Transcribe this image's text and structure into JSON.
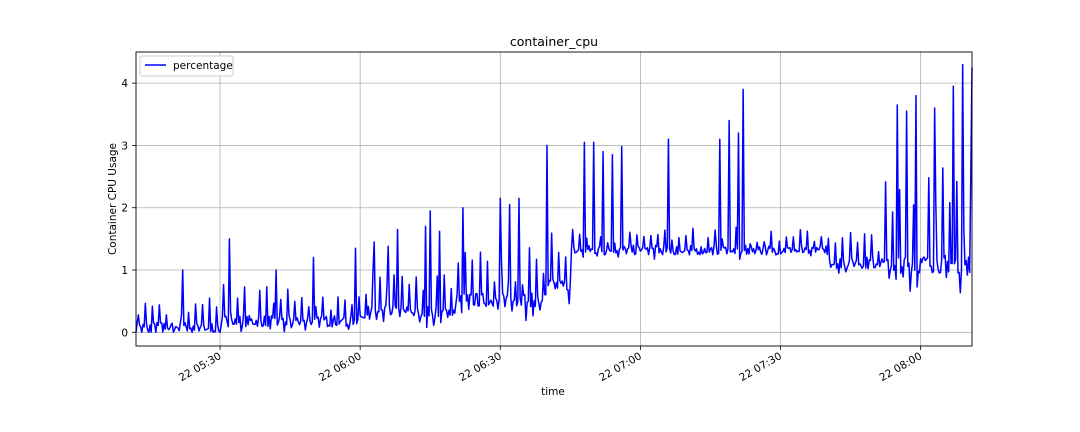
{
  "chart_data": {
    "type": "line",
    "title": "container_cpu",
    "xlabel": "time",
    "ylabel": "Container CPU Usage",
    "xlim": [
      "05:12",
      "08:11"
    ],
    "ylim": [
      -0.22,
      4.5
    ],
    "grid": true,
    "legend_position": "top-left",
    "x_ticks": [
      {
        "t": "05:30",
        "label": "22 05:30"
      },
      {
        "t": "06:00",
        "label": "22 06:00"
      },
      {
        "t": "06:30",
        "label": "22 06:30"
      },
      {
        "t": "07:00",
        "label": "22 07:00"
      },
      {
        "t": "07:30",
        "label": "22 07:30"
      },
      {
        "t": "08:00",
        "label": "22 08:00"
      }
    ],
    "y_ticks": [
      0,
      1,
      2,
      3,
      4
    ],
    "series": [
      {
        "name": "percentage",
        "color": "#0000ff",
        "segments": [
          {
            "start": "05:12",
            "end": "05:30",
            "base": 0.08,
            "amp": 0.45
          },
          {
            "start": "05:30",
            "end": "06:00",
            "base": 0.18,
            "amp": 0.55
          },
          {
            "start": "06:00",
            "end": "06:20",
            "base": 0.33,
            "amp": 0.65
          },
          {
            "start": "06:20",
            "end": "06:40",
            "base": 0.52,
            "amp": 0.85
          },
          {
            "start": "06:40",
            "end": "06:45",
            "base": 0.75,
            "amp": 0.9
          },
          {
            "start": "06:45",
            "end": "07:40",
            "base": 1.32,
            "amp": 0.3
          },
          {
            "start": "07:40",
            "end": "07:52",
            "base": 1.12,
            "amp": 0.55
          },
          {
            "start": "07:52",
            "end": "08:11",
            "base": 1.1,
            "amp": 1.5
          }
        ],
        "peaks": [
          {
            "t": "05:22",
            "v": 1.0
          },
          {
            "t": "05:32",
            "v": 1.5
          },
          {
            "t": "05:42",
            "v": 1.0
          },
          {
            "t": "05:50",
            "v": 1.2
          },
          {
            "t": "05:59",
            "v": 1.35
          },
          {
            "t": "06:03",
            "v": 1.45
          },
          {
            "t": "06:06",
            "v": 1.38
          },
          {
            "t": "06:08",
            "v": 1.65
          },
          {
            "t": "06:14",
            "v": 1.7
          },
          {
            "t": "06:15",
            "v": 1.95
          },
          {
            "t": "06:17",
            "v": 1.62
          },
          {
            "t": "06:22",
            "v": 2.0
          },
          {
            "t": "06:30",
            "v": 2.15
          },
          {
            "t": "06:32",
            "v": 2.05
          },
          {
            "t": "06:34",
            "v": 2.15
          },
          {
            "t": "06:40",
            "v": 3.0
          },
          {
            "t": "06:48",
            "v": 3.05
          },
          {
            "t": "06:50",
            "v": 3.05
          },
          {
            "t": "06:52",
            "v": 2.9
          },
          {
            "t": "06:54",
            "v": 2.85
          },
          {
            "t": "06:56",
            "v": 2.98
          },
          {
            "t": "07:06",
            "v": 3.1
          },
          {
            "t": "07:17",
            "v": 3.1
          },
          {
            "t": "07:19",
            "v": 3.4
          },
          {
            "t": "07:21",
            "v": 3.2
          },
          {
            "t": "07:22",
            "v": 3.9
          },
          {
            "t": "07:55",
            "v": 3.65
          },
          {
            "t": "07:57",
            "v": 3.55
          },
          {
            "t": "07:59",
            "v": 3.8
          },
          {
            "t": "08:03",
            "v": 3.6
          },
          {
            "t": "08:07",
            "v": 3.95
          },
          {
            "t": "08:09",
            "v": 4.3
          },
          {
            "t": "08:11",
            "v": 4.25
          }
        ]
      }
    ]
  }
}
